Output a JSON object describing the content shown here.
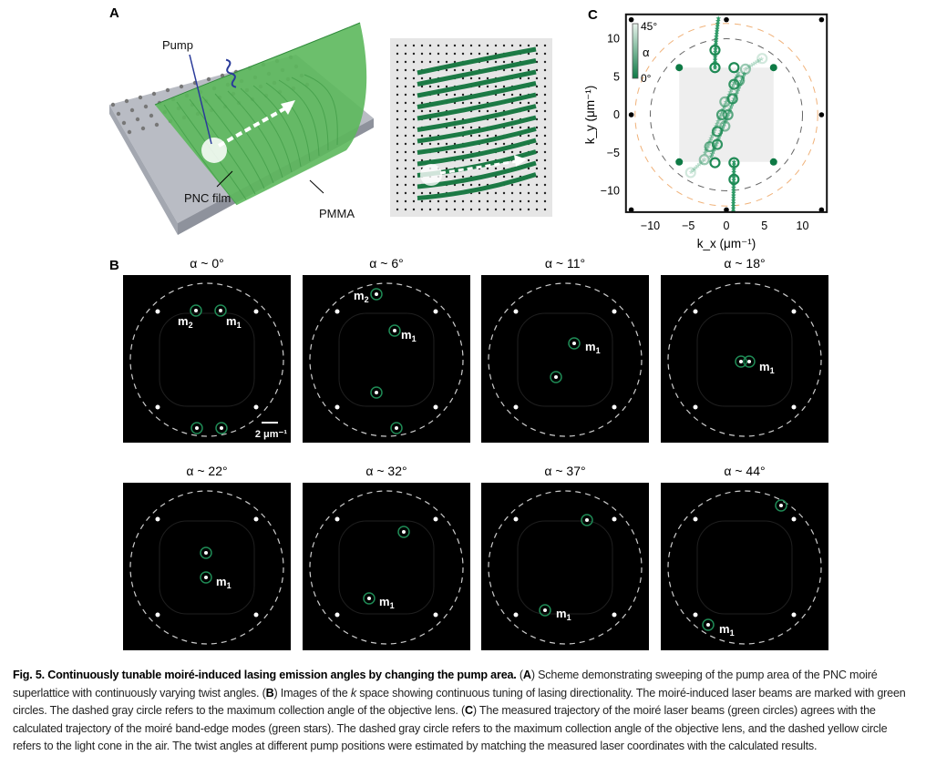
{
  "panels": {
    "a": "A",
    "b": "B",
    "c": "C"
  },
  "panel_a": {
    "pump_label": "Pump",
    "film_label": "PNC film",
    "pmma_label": "PMMA"
  },
  "panel_b": {
    "titles": [
      "α ~ 0°",
      "α ~ 6°",
      "α ~ 11°",
      "α ~ 18°",
      "α ~ 22°",
      "α ~ 32°",
      "α ~ 37°",
      "α ~ 44°"
    ],
    "mode1": "m",
    "mode2": "m",
    "sub1": "1",
    "sub2": "2",
    "scale_bar": "2 μm⁻¹",
    "marker_color": "#1f8a55"
  },
  "chart_data": {
    "type": "scatter",
    "xlabel": "k_x (μm⁻¹)",
    "ylabel": "k_y (μm⁻¹)",
    "xlabel_main": "k",
    "xlabel_sub": "x",
    "ylabel_main": "k",
    "ylabel_sub": "y",
    "unit": "(μm⁻¹)",
    "xlim": [
      -13,
      13
    ],
    "ylim": [
      -13,
      13
    ],
    "xticks": [
      -10,
      -5,
      0,
      5,
      10
    ],
    "yticks": [
      10,
      5,
      0,
      -5,
      -10
    ],
    "tick_labels_x": [
      "−10",
      "−5",
      "0",
      "5",
      "10"
    ],
    "tick_labels_y": [
      "10",
      "5",
      "0",
      "−5",
      "−10"
    ],
    "colorbar": {
      "label": "α",
      "max": "45°",
      "min": "0°",
      "color_low": "#0e7a45",
      "color_high": "#e8f3ec"
    },
    "light_cone_radius": 12,
    "collection_radius": 10,
    "brillouin_half_width": 6.2,
    "series": [
      {
        "name": "measured moiré laser beams (circles)",
        "points": [
          [
            -1.5,
            8.5,
            0
          ],
          [
            -1.5,
            6.2,
            0
          ],
          [
            1,
            6.2,
            0
          ],
          [
            2.5,
            6,
            30
          ],
          [
            1,
            4,
            5
          ],
          [
            1.7,
            4.5,
            20
          ],
          [
            0.8,
            2.1,
            8
          ],
          [
            -0.2,
            1.7,
            25
          ],
          [
            -0.6,
            0,
            12
          ],
          [
            0.2,
            0,
            15
          ],
          [
            -0.2,
            -1.5,
            25
          ],
          [
            -1.2,
            -2.2,
            8
          ],
          [
            -1.2,
            -3.9,
            5
          ],
          [
            -2.2,
            -4.2,
            20
          ],
          [
            -2.9,
            -5.9,
            30
          ],
          [
            -1.5,
            -6.3,
            0
          ],
          [
            1,
            -6.3,
            0
          ],
          [
            1,
            -8.5,
            0
          ],
          [
            4.7,
            7.4,
            44
          ],
          [
            -4.7,
            -7.6,
            44
          ]
        ]
      },
      {
        "name": "calculated band-edge modes (stars)"
      },
      {
        "name": "first-order lattice points",
        "points": [
          [
            -6.2,
            6.2
          ],
          [
            6.2,
            6.2
          ],
          [
            -6.2,
            -6.2
          ],
          [
            6.2,
            -6.2
          ]
        ]
      },
      {
        "name": "second-order lattice points",
        "points": [
          [
            -12.5,
            12.5
          ],
          [
            0,
            12.5
          ],
          [
            12.5,
            12.5
          ],
          [
            -12.5,
            0
          ],
          [
            12.5,
            0
          ],
          [
            -12.5,
            -12.5
          ],
          [
            0,
            -12.5
          ],
          [
            12.5,
            -12.5
          ]
        ]
      }
    ],
    "colors": {
      "circle": "#1f8a55",
      "gray_circle": "#666666",
      "orange_circle": "#f0b27a",
      "square": "#eeeeee"
    }
  },
  "caption": {
    "fig": "Fig. 5. Continuously tunable moiré-induced lasing emission angles by changing the pump area.",
    "a_open": " (",
    "a": "A",
    "a_text": ") Scheme demonstrating sweeping of the pump area of the PNC moiré superlattice with continuously varying twist angles. (",
    "b": "B",
    "b_text1": ") Images of the ",
    "b_k": "k",
    "b_text2": " space showing continuous tuning of lasing directionality. The moiré-induced laser beams are marked with green circles. The dashed gray circle refers to the maximum collection angle of the objective lens. (",
    "c": "C",
    "c_text": ") The measured trajectory of the moiré laser beams (green circles) agrees with the calculated trajectory of the moiré band-edge modes (green stars). The dashed gray circle refers to the maximum collection angle of the objective lens, and the dashed yellow circle refers to the light cone in the air. The twist angles at different pump positions were estimated by matching the measured laser coordinates with the calculated results."
  }
}
